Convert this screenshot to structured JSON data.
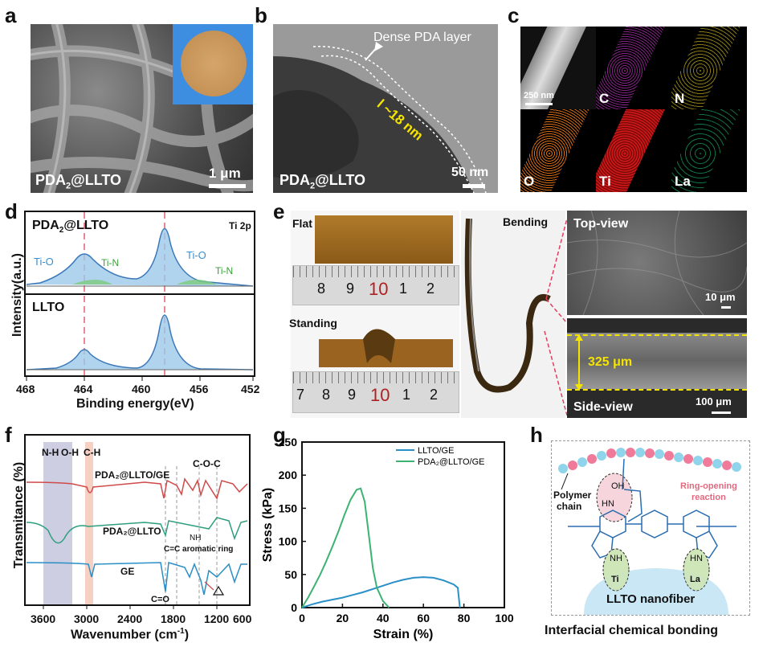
{
  "panels": {
    "a": {
      "label": "a",
      "sample": "PDA",
      "sample_sub": "2",
      "sample_rest": "@LLTO",
      "scale": "1 μm"
    },
    "b": {
      "label": "b",
      "sample": "PDA",
      "sample_sub": "2",
      "sample_rest": "@LLTO",
      "scale": "50 nm",
      "annotation": "Dense PDA layer",
      "thickness": "l ~18 nm"
    },
    "c": {
      "label": "c",
      "scale": "250 nm",
      "elements": [
        "C",
        "N",
        "O",
        "Ti",
        "La"
      ]
    },
    "d": {
      "label": "d",
      "top_sample": "PDA",
      "top_sub": "2",
      "top_rest": "@LLTO",
      "bottom_sample": "LLTO",
      "region": "Ti 2p",
      "peaks": [
        "Ti-O",
        "Ti-N",
        "Ti-O",
        "Ti-N"
      ],
      "ylabel": "Intensity(a.u.)",
      "xlabel": "Binding energy(eV)",
      "xticks": [
        "468",
        "464",
        "460",
        "456",
        "452"
      ]
    },
    "e": {
      "label": "e",
      "flat": "Flat",
      "standing": "Standing",
      "bending": "Bending",
      "top_view": "Top-view",
      "side_view": "Side-view",
      "thickness": "325 μm",
      "scale_top": "10 μm",
      "scale_side": "100 μm",
      "ruler1": [
        "8",
        "9",
        "10",
        "1",
        "2"
      ],
      "ruler2": [
        "7",
        "8",
        "9",
        "10",
        "1",
        "2"
      ]
    },
    "f": {
      "label": "f",
      "ylabel": "Transmitance (%)",
      "xlabel": "Wavenumber (cm",
      "xlabel_sup": "-1",
      "xlabel_end": ")",
      "bands": [
        "N-H",
        "O-H",
        "C-H",
        "C-O-C"
      ],
      "curves": [
        "PDA₂@LLTO/GE",
        "PDA₂@LLTO",
        "GE"
      ],
      "notes": [
        "NH",
        "C=C aromatic ring",
        "C=O"
      ],
      "xticks": [
        "3600",
        "3000",
        "2400",
        "1800",
        "1200",
        "600"
      ]
    },
    "h": {
      "label": "h",
      "polymer": "Polymer",
      "chain": "chain",
      "reaction": "Ring-opening",
      "reaction2": "reaction",
      "oh": "OH",
      "hn": "HN",
      "nh": "NH",
      "ti": "Ti",
      "la": "La",
      "fiber": "LLTO nanofiber",
      "caption": "Interfacial chemical bonding"
    }
  },
  "chart_data": {
    "type": "line",
    "title": "",
    "xlabel": "Strain (%)",
    "ylabel": "Stress (kPa)",
    "xlim": [
      0,
      100
    ],
    "ylim": [
      0,
      250
    ],
    "xticks": [
      0,
      20,
      40,
      60,
      80,
      100
    ],
    "yticks": [
      0,
      50,
      100,
      150,
      200,
      250
    ],
    "legend_position": "top-right",
    "series": [
      {
        "name": "LLTO/GE",
        "color": "#2a8fc7",
        "x": [
          0,
          5,
          10,
          15,
          20,
          25,
          30,
          35,
          40,
          45,
          50,
          55,
          60,
          65,
          70,
          75,
          77,
          78
        ],
        "y": [
          0,
          5,
          9,
          12,
          15,
          19,
          23,
          28,
          33,
          38,
          42,
          45,
          46,
          45,
          41,
          35,
          30,
          0
        ]
      },
      {
        "name": "PDA₂@LLTO/GE",
        "color": "#3cb371",
        "x": [
          0,
          3,
          6,
          9,
          12,
          15,
          18,
          21,
          24,
          27,
          29,
          31,
          33,
          35,
          37,
          40,
          43
        ],
        "y": [
          0,
          15,
          32,
          50,
          70,
          92,
          115,
          140,
          163,
          178,
          180,
          160,
          110,
          60,
          30,
          10,
          0
        ]
      }
    ]
  }
}
